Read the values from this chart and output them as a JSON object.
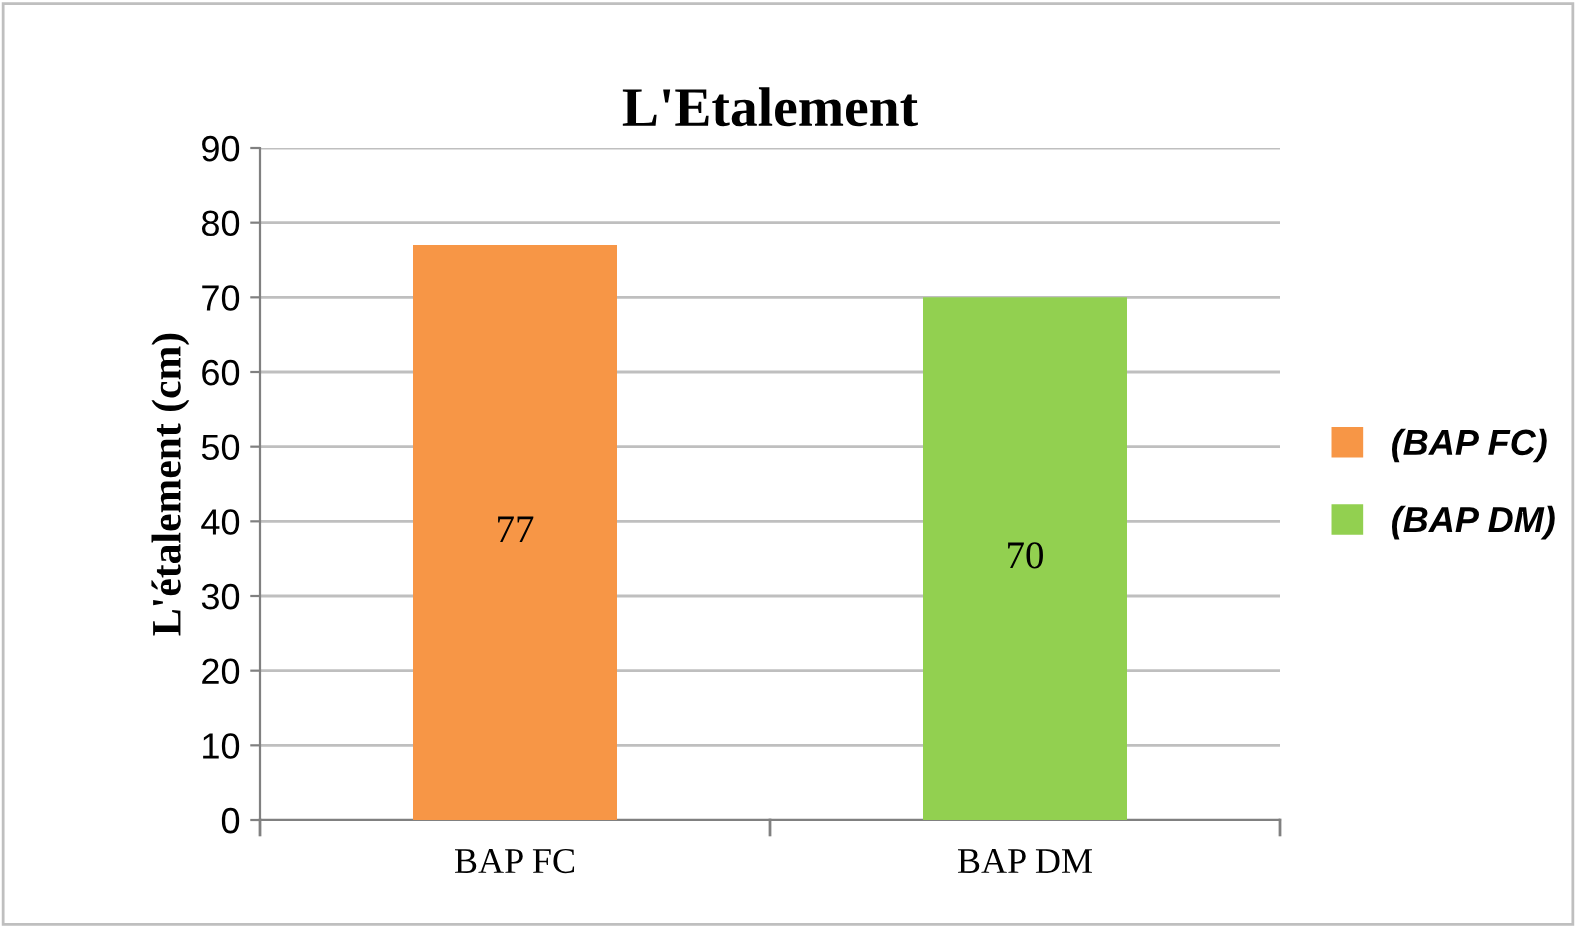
{
  "chart_data": {
    "type": "bar",
    "title": "L'Etalement",
    "ylabel": "L'étalement (cm)",
    "categories": [
      "BAP FC",
      "BAP DM"
    ],
    "series": [
      {
        "name": "(BAP FC)",
        "color": "#f79646",
        "values": [
          77,
          null
        ]
      },
      {
        "name": "(BAP DM)",
        "color": "#92d050",
        "values": [
          null,
          70
        ]
      }
    ],
    "ylim": [
      0,
      90
    ],
    "yticks": [
      0,
      10,
      20,
      30,
      40,
      50,
      60,
      70,
      80,
      90
    ],
    "grid": "y",
    "legend": "right",
    "data_labels": true
  }
}
